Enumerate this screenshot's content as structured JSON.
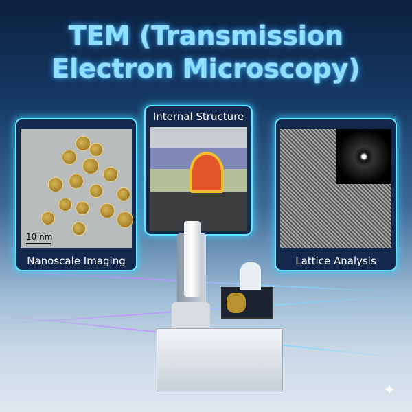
{
  "title": {
    "line1": "TEM (Transmission",
    "line2": "Electron Microscopy)"
  },
  "panels": [
    {
      "label": "Nanoscale Imaging",
      "scale_bar": "10 nm"
    },
    {
      "label": "Internal Structure"
    },
    {
      "label": "Lattice Analysis"
    }
  ],
  "colors": {
    "title": "#8fe0ff",
    "panel_border": "#62e6ff",
    "panel_bg": "#14294d"
  }
}
